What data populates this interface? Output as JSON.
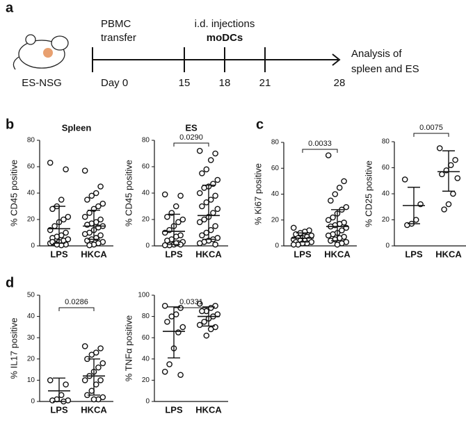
{
  "panel_labels": [
    "a",
    "b",
    "c",
    "d"
  ],
  "timeline": {
    "model": "ES-NSG",
    "event1": [
      "PBMC",
      "transfer"
    ],
    "event2": "i.d. injections",
    "event2_bold": "moDCs",
    "ticks": [
      "Day 0",
      "15",
      "18",
      "21",
      "28"
    ],
    "end": [
      "Analysis of",
      "spleen and ES"
    ]
  },
  "chart_data": [
    {
      "type": "strip",
      "title": "Spleen",
      "y_label": "% CD45 positive",
      "categories": [
        "LPS",
        "HKCA"
      ],
      "ylim": [
        0,
        80
      ],
      "yticks": [
        0,
        20,
        40,
        60,
        80
      ],
      "values": [
        [
          63,
          58,
          35,
          30,
          28,
          22,
          20,
          18,
          15,
          12,
          10,
          8,
          7,
          6,
          5,
          4,
          3,
          2,
          2,
          1,
          0.5,
          1,
          3,
          5
        ],
        [
          57,
          45,
          40,
          38,
          35,
          32,
          30,
          28,
          25,
          22,
          20,
          18,
          17,
          16,
          15,
          14,
          12,
          10,
          9,
          8,
          6,
          5,
          4,
          3,
          2,
          1,
          0.5
        ]
      ],
      "mean": [
        13,
        15
      ],
      "whisker_low": [
        2,
        5
      ],
      "whisker_high": [
        30,
        27
      ]
    },
    {
      "type": "strip",
      "title": "ES",
      "y_label": "% CD45 positive",
      "categories": [
        "LPS",
        "HKCA"
      ],
      "ylim": [
        0,
        80
      ],
      "yticks": [
        0,
        20,
        40,
        60,
        80
      ],
      "p_value": "0.0290",
      "values": [
        [
          39,
          38,
          30,
          25,
          22,
          20,
          18,
          15,
          12,
          10,
          8,
          7,
          5,
          4,
          3,
          2,
          1,
          0.5,
          0.5,
          1,
          2
        ],
        [
          72,
          70,
          65,
          58,
          55,
          50,
          47,
          45,
          44,
          40,
          38,
          35,
          33,
          30,
          28,
          25,
          22,
          20,
          18,
          15,
          12,
          10,
          8,
          6,
          5,
          4,
          3,
          2,
          1
        ]
      ],
      "mean": [
        11,
        23
      ],
      "whisker_low": [
        1,
        5
      ],
      "whisker_high": [
        24,
        46
      ]
    },
    {
      "type": "strip",
      "y_label": "% Ki67 positive",
      "categories": [
        "LPS",
        "HKCA"
      ],
      "ylim": [
        0,
        80
      ],
      "yticks": [
        0,
        20,
        40,
        60,
        80
      ],
      "p_value": "0.0033",
      "values": [
        [
          14,
          12,
          11,
          10,
          9,
          8,
          7,
          6,
          6,
          5,
          5,
          4,
          4,
          3,
          3,
          2,
          2,
          1,
          1
        ],
        [
          70,
          50,
          45,
          40,
          35,
          30,
          28,
          25,
          22,
          20,
          18,
          17,
          16,
          15,
          14,
          12,
          10,
          9,
          8,
          7,
          6,
          5,
          4,
          3,
          2,
          1
        ]
      ],
      "mean": [
        6,
        15
      ],
      "whisker_low": [
        3,
        4
      ],
      "whisker_high": [
        10,
        28
      ]
    },
    {
      "type": "strip",
      "y_label": "% CD25 positive",
      "categories": [
        "LPS",
        "HKCA"
      ],
      "ylim": [
        0,
        80
      ],
      "yticks": [
        0,
        20,
        40,
        60,
        80
      ],
      "p_value": "0.0075",
      "values": [
        [
          51,
          32,
          20,
          17,
          16
        ],
        [
          75,
          66,
          62,
          58,
          55,
          52,
          40,
          32,
          28
        ]
      ],
      "mean": [
        31,
        57
      ],
      "whisker_low": [
        17,
        42
      ],
      "whisker_high": [
        45,
        73
      ]
    },
    {
      "type": "strip",
      "y_label": "% IL17 positive",
      "categories": [
        "LPS",
        "HKCA"
      ],
      "ylim": [
        0,
        50
      ],
      "yticks": [
        0,
        10,
        20,
        30,
        40,
        50
      ],
      "p_value": "0.0286",
      "values": [
        [
          10,
          8,
          3,
          1,
          0.5,
          0.5,
          0
        ],
        [
          26,
          25,
          23,
          22,
          20,
          18,
          16,
          14,
          12,
          10,
          10,
          8,
          5,
          3,
          2,
          1,
          1
        ]
      ],
      "mean": [
        5,
        12
      ],
      "whisker_low": [
        0,
        3
      ],
      "whisker_high": [
        11,
        20
      ]
    },
    {
      "type": "strip",
      "y_label": "% TNFα positive",
      "categories": [
        "LPS",
        "HKCA"
      ],
      "ylim": [
        0,
        100
      ],
      "yticks": [
        0,
        20,
        40,
        60,
        80,
        100
      ],
      "p_value": "0.0331",
      "values": [
        [
          90,
          88,
          82,
          80,
          75,
          70,
          65,
          50,
          35,
          28,
          25
        ],
        [
          92,
          90,
          88,
          85,
          85,
          82,
          80,
          78,
          75,
          72,
          70,
          68,
          62
        ]
      ],
      "mean": [
        66,
        80
      ],
      "whisker_low": [
        41,
        71
      ],
      "whisker_high": [
        89,
        89
      ]
    }
  ]
}
